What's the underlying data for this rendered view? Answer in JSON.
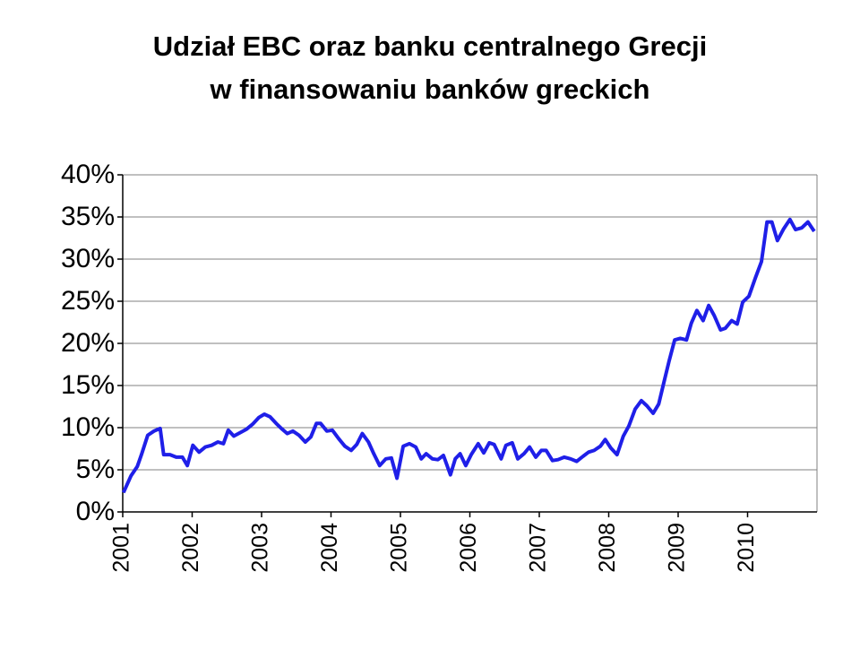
{
  "chart_data": {
    "type": "line",
    "title": [
      "Udział EBC oraz banku centralnego Grecji",
      "w finansowaniu banków greckich"
    ],
    "color": "#1f1fe8",
    "grid": true,
    "xlim": [
      2001,
      2011
    ],
    "xticks": [
      2001,
      2002,
      2003,
      2004,
      2005,
      2006,
      2007,
      2008,
      2009,
      2010
    ],
    "ylim": [
      0,
      40
    ],
    "yticks": [
      {
        "value": 0,
        "label": "0%"
      },
      {
        "value": 5,
        "label": "5%"
      },
      {
        "value": 10,
        "label": "10%"
      },
      {
        "value": 15,
        "label": "15%"
      },
      {
        "value": 20,
        "label": "20%"
      },
      {
        "value": 25,
        "label": "25%"
      },
      {
        "value": 30,
        "label": "30%"
      },
      {
        "value": 35,
        "label": "35%"
      },
      {
        "value": 40,
        "label": "40%"
      }
    ],
    "x": [
      2001.01,
      2001.12,
      2001.21,
      2001.27,
      2001.36,
      2001.45,
      2001.54,
      2001.59,
      2001.68,
      2001.77,
      2001.86,
      2001.93,
      2002.01,
      2002.1,
      2002.19,
      2002.28,
      2002.37,
      2002.45,
      2002.52,
      2002.6,
      2002.69,
      2002.78,
      2002.87,
      2002.96,
      2003.04,
      2003.12,
      2003.21,
      2003.3,
      2003.37,
      2003.45,
      2003.54,
      2003.63,
      2003.71,
      2003.79,
      2003.85,
      2003.94,
      2004.02,
      2004.11,
      2004.2,
      2004.29,
      2004.37,
      2004.45,
      2004.54,
      2004.61,
      2004.7,
      2004.79,
      2004.87,
      2004.95,
      2005.04,
      2005.13,
      2005.22,
      2005.3,
      2005.37,
      2005.46,
      2005.54,
      2005.62,
      2005.72,
      2005.79,
      2005.86,
      2005.94,
      2006.02,
      2006.12,
      2006.2,
      2006.28,
      2006.35,
      2006.45,
      2006.52,
      2006.61,
      2006.69,
      2006.78,
      2006.86,
      2006.95,
      2007.03,
      2007.1,
      2007.19,
      2007.27,
      2007.36,
      2007.45,
      2007.54,
      2007.63,
      2007.71,
      2007.79,
      2007.88,
      2007.95,
      2008.03,
      2008.12,
      2008.21,
      2008.29,
      2008.38,
      2008.47,
      2008.55,
      2008.64,
      2008.72,
      2008.79,
      2008.87,
      2008.95,
      2009.03,
      2009.12,
      2009.19,
      2009.27,
      2009.36,
      2009.44,
      2009.52,
      2009.61,
      2009.68,
      2009.77,
      2009.85,
      2009.93,
      2010.02,
      2010.11,
      2010.2,
      2010.28,
      2010.35,
      2010.43,
      2010.52,
      2010.61,
      2010.69,
      2010.78,
      2010.87,
      2010.96
    ],
    "values": [
      2.3,
      4.3,
      5.4,
      6.8,
      9.1,
      9.6,
      9.9,
      6.8,
      6.8,
      6.5,
      6.5,
      5.5,
      7.9,
      7.1,
      7.7,
      7.9,
      8.3,
      8.1,
      9.7,
      9.0,
      9.4,
      9.8,
      10.4,
      11.2,
      11.6,
      11.3,
      10.5,
      9.8,
      9.3,
      9.6,
      9.1,
      8.3,
      8.9,
      10.5,
      10.5,
      9.6,
      9.7,
      8.7,
      7.8,
      7.3,
      8.0,
      9.3,
      8.3,
      7.0,
      5.5,
      6.3,
      6.4,
      4.0,
      7.8,
      8.1,
      7.7,
      6.3,
      6.9,
      6.3,
      6.2,
      6.7,
      4.4,
      6.3,
      6.9,
      5.5,
      6.8,
      8.1,
      7.0,
      8.2,
      8.0,
      6.3,
      7.9,
      8.2,
      6.3,
      6.9,
      7.7,
      6.5,
      7.3,
      7.3,
      6.1,
      6.2,
      6.5,
      6.3,
      6.0,
      6.6,
      7.1,
      7.3,
      7.8,
      8.6,
      7.6,
      6.8,
      9.0,
      10.2,
      12.2,
      13.2,
      12.6,
      11.7,
      12.8,
      15.2,
      17.9,
      20.4,
      20.6,
      20.4,
      22.4,
      23.9,
      22.7,
      24.5,
      23.3,
      21.6,
      21.8,
      22.7,
      22.3,
      24.9,
      25.6,
      27.7,
      29.7,
      34.4,
      34.4,
      32.2,
      33.6,
      34.7,
      33.5,
      33.7,
      34.4,
      33.3
    ]
  }
}
